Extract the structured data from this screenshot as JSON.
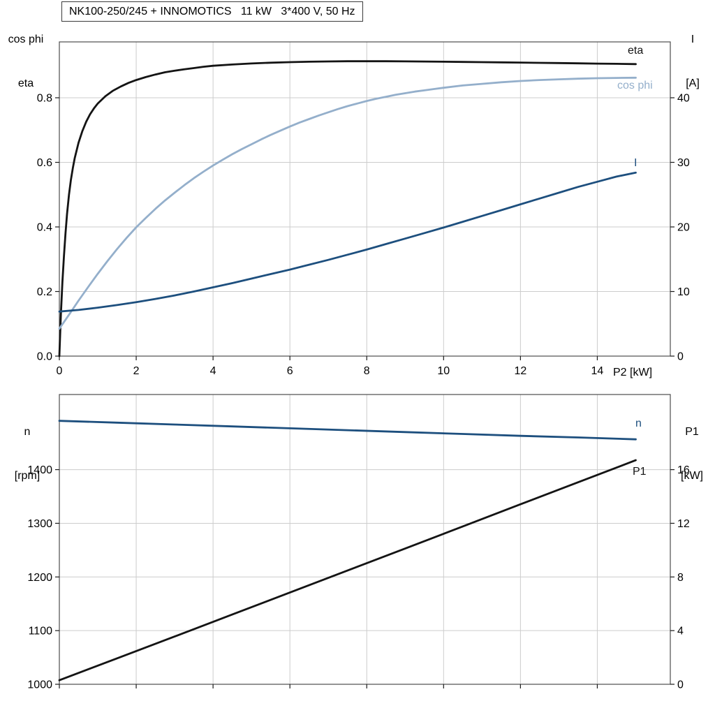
{
  "title": "NK100-250/245 + INNOMOTICS   11 kW   3*400 V, 50 Hz",
  "colors": {
    "black": "#141414",
    "dark_blue": "#1d4f7e",
    "light_blue": "#94afcb",
    "grid": "#cccccc",
    "axis": "#4d4d4d",
    "tick": "#1a1a1a"
  },
  "chart_data": [
    {
      "type": "line",
      "panel": "top",
      "x_axis": {
        "label": "P2 [kW]",
        "min": 0,
        "max": 15.9,
        "ticks": [
          "0",
          "2",
          "4",
          "6",
          "8",
          "10",
          "12",
          "14"
        ],
        "show_labels": true
      },
      "y_left": {
        "labels": [
          "cos phi",
          "eta"
        ],
        "min": 0,
        "max": 0.973,
        "ticks": [
          "0.0",
          "0.2",
          "0.4",
          "0.6",
          "0.8"
        ]
      },
      "y_right": {
        "labels": [
          "I",
          "[A]"
        ],
        "min": 0,
        "max": 48.65,
        "ticks": [
          "0",
          "10",
          "20",
          "30",
          "40"
        ]
      },
      "grid": true,
      "legend_position": "curve-end-labels",
      "series": [
        {
          "name": "eta",
          "axis": "left",
          "color": "#141414",
          "width": 2.8,
          "points": [
            [
              0,
              0
            ],
            [
              0.04,
              0.13
            ],
            [
              0.08,
              0.23
            ],
            [
              0.12,
              0.31
            ],
            [
              0.16,
              0.38
            ],
            [
              0.2,
              0.44
            ],
            [
              0.25,
              0.5
            ],
            [
              0.3,
              0.545
            ],
            [
              0.35,
              0.582
            ],
            [
              0.4,
              0.613
            ],
            [
              0.5,
              0.661
            ],
            [
              0.6,
              0.697
            ],
            [
              0.7,
              0.726
            ],
            [
              0.8,
              0.749
            ],
            [
              0.9,
              0.767
            ],
            [
              1,
              0.782
            ],
            [
              1.2,
              0.805
            ],
            [
              1.4,
              0.822
            ],
            [
              1.6,
              0.835
            ],
            [
              1.8,
              0.846
            ],
            [
              2,
              0.855
            ],
            [
              2.25,
              0.864
            ],
            [
              2.5,
              0.872
            ],
            [
              2.75,
              0.879
            ],
            [
              3,
              0.884
            ],
            [
              3.25,
              0.888
            ],
            [
              3.5,
              0.892
            ],
            [
              3.75,
              0.896
            ],
            [
              4,
              0.899
            ],
            [
              4.5,
              0.903
            ],
            [
              5,
              0.9062
            ],
            [
              5.5,
              0.9085
            ],
            [
              6,
              0.9102
            ],
            [
              6.5,
              0.9115
            ],
            [
              7,
              0.9124
            ],
            [
              7.5,
              0.913
            ],
            [
              8,
              0.9132
            ],
            [
              8.5,
              0.9131
            ],
            [
              9,
              0.9127
            ],
            [
              9.5,
              0.9122
            ],
            [
              10,
              0.9116
            ],
            [
              10.5,
              0.911
            ],
            [
              11,
              0.9103
            ],
            [
              11.5,
              0.9096
            ],
            [
              12,
              0.9089
            ],
            [
              12.5,
              0.9081
            ],
            [
              13,
              0.9074
            ],
            [
              13.5,
              0.9066
            ],
            [
              14,
              0.9058
            ],
            [
              14.5,
              0.905
            ],
            [
              15,
              0.9043
            ]
          ]
        },
        {
          "name": "cos phi",
          "axis": "left",
          "color": "#94afcb",
          "width": 2.8,
          "points": [
            [
              0,
              0.085
            ],
            [
              0.25,
              0.128
            ],
            [
              0.5,
              0.172
            ],
            [
              0.75,
              0.214
            ],
            [
              1,
              0.255
            ],
            [
              1.25,
              0.294
            ],
            [
              1.5,
              0.331
            ],
            [
              1.75,
              0.366
            ],
            [
              2,
              0.399
            ],
            [
              2.25,
              0.428
            ],
            [
              2.5,
              0.456
            ],
            [
              2.75,
              0.482
            ],
            [
              3,
              0.506
            ],
            [
              3.25,
              0.529
            ],
            [
              3.5,
              0.551
            ],
            [
              3.75,
              0.571
            ],
            [
              4,
              0.59
            ],
            [
              4.25,
              0.608
            ],
            [
              4.5,
              0.625
            ],
            [
              4.75,
              0.641
            ],
            [
              5,
              0.656
            ],
            [
              5.25,
              0.671
            ],
            [
              5.5,
              0.685
            ],
            [
              5.75,
              0.698
            ],
            [
              6,
              0.711
            ],
            [
              6.25,
              0.723
            ],
            [
              6.5,
              0.734
            ],
            [
              6.75,
              0.745
            ],
            [
              7,
              0.755
            ],
            [
              7.25,
              0.765
            ],
            [
              7.5,
              0.774
            ],
            [
              7.75,
              0.782
            ],
            [
              8,
              0.79
            ],
            [
              8.25,
              0.797
            ],
            [
              8.5,
              0.803
            ],
            [
              8.75,
              0.809
            ],
            [
              9,
              0.814
            ],
            [
              9.25,
              0.819
            ],
            [
              9.5,
              0.823
            ],
            [
              9.75,
              0.827
            ],
            [
              10,
              0.831
            ],
            [
              10.5,
              0.838
            ],
            [
              11,
              0.843
            ],
            [
              11.5,
              0.848
            ],
            [
              12,
              0.852
            ],
            [
              12.5,
              0.855
            ],
            [
              13,
              0.857
            ],
            [
              13.5,
              0.859
            ],
            [
              14,
              0.8605
            ],
            [
              14.5,
              0.8615
            ],
            [
              15,
              0.862
            ]
          ]
        },
        {
          "name": "I",
          "axis": "right",
          "color": "#1d4f7e",
          "width": 2.8,
          "points": [
            [
              0,
              6.9
            ],
            [
              0.5,
              7.15
            ],
            [
              1,
              7.5
            ],
            [
              1.5,
              7.9
            ],
            [
              2,
              8.35
            ],
            [
              2.5,
              8.85
            ],
            [
              3,
              9.4
            ],
            [
              3.5,
              10
            ],
            [
              4,
              10.65
            ],
            [
              4.5,
              11.3
            ],
            [
              5,
              12
            ],
            [
              5.5,
              12.7
            ],
            [
              6,
              13.4
            ],
            [
              6.5,
              14.15
            ],
            [
              7,
              14.9
            ],
            [
              7.5,
              15.7
            ],
            [
              8,
              16.5
            ],
            [
              8.5,
              17.35
            ],
            [
              9,
              18.2
            ],
            [
              9.5,
              19.05
            ],
            [
              10,
              19.9
            ],
            [
              10.5,
              20.8
            ],
            [
              11,
              21.7
            ],
            [
              11.5,
              22.6
            ],
            [
              12,
              23.5
            ],
            [
              12.5,
              24.4
            ],
            [
              13,
              25.3
            ],
            [
              13.5,
              26.2
            ],
            [
              14,
              27
            ],
            [
              14.5,
              27.8
            ],
            [
              15,
              28.4
            ]
          ]
        }
      ]
    },
    {
      "type": "line",
      "panel": "bottom",
      "x_axis": {
        "label": "",
        "min": 0,
        "max": 15.9,
        "ticks": [
          "0",
          "2",
          "4",
          "6",
          "8",
          "10",
          "12",
          "14"
        ],
        "show_labels": false
      },
      "y_left": {
        "labels": [
          "n",
          "[rpm]"
        ],
        "min": 1000,
        "max": 1540,
        "ticks": [
          "1000",
          "1100",
          "1200",
          "1300",
          "1400"
        ]
      },
      "y_right": {
        "labels": [
          "P1",
          "[kW]"
        ],
        "min": 0,
        "max": 21.6,
        "ticks": [
          "0",
          "4",
          "8",
          "12",
          "16"
        ]
      },
      "grid": true,
      "legend_position": "curve-end-labels",
      "series": [
        {
          "name": "n",
          "axis": "left",
          "color": "#1d4f7e",
          "width": 2.8,
          "points": [
            [
              0,
              1491
            ],
            [
              1.5,
              1487.5
            ],
            [
              3,
              1484
            ],
            [
              4.5,
              1480.5
            ],
            [
              6,
              1477
            ],
            [
              7.5,
              1473.5
            ],
            [
              9,
              1470
            ],
            [
              10.5,
              1466.5
            ],
            [
              12,
              1463
            ],
            [
              13.5,
              1460
            ],
            [
              15,
              1456.5
            ]
          ]
        },
        {
          "name": "P1",
          "axis": "right",
          "color": "#141414",
          "width": 2.8,
          "points": [
            [
              0,
              0.3
            ],
            [
              1.5,
              1.93
            ],
            [
              3,
              3.56
            ],
            [
              4.5,
              5.2
            ],
            [
              6,
              6.84
            ],
            [
              7.5,
              8.48
            ],
            [
              9,
              10.12
            ],
            [
              10.5,
              11.77
            ],
            [
              12,
              13.42
            ],
            [
              13.5,
              15.06
            ],
            [
              15,
              16.7
            ]
          ]
        }
      ]
    }
  ]
}
